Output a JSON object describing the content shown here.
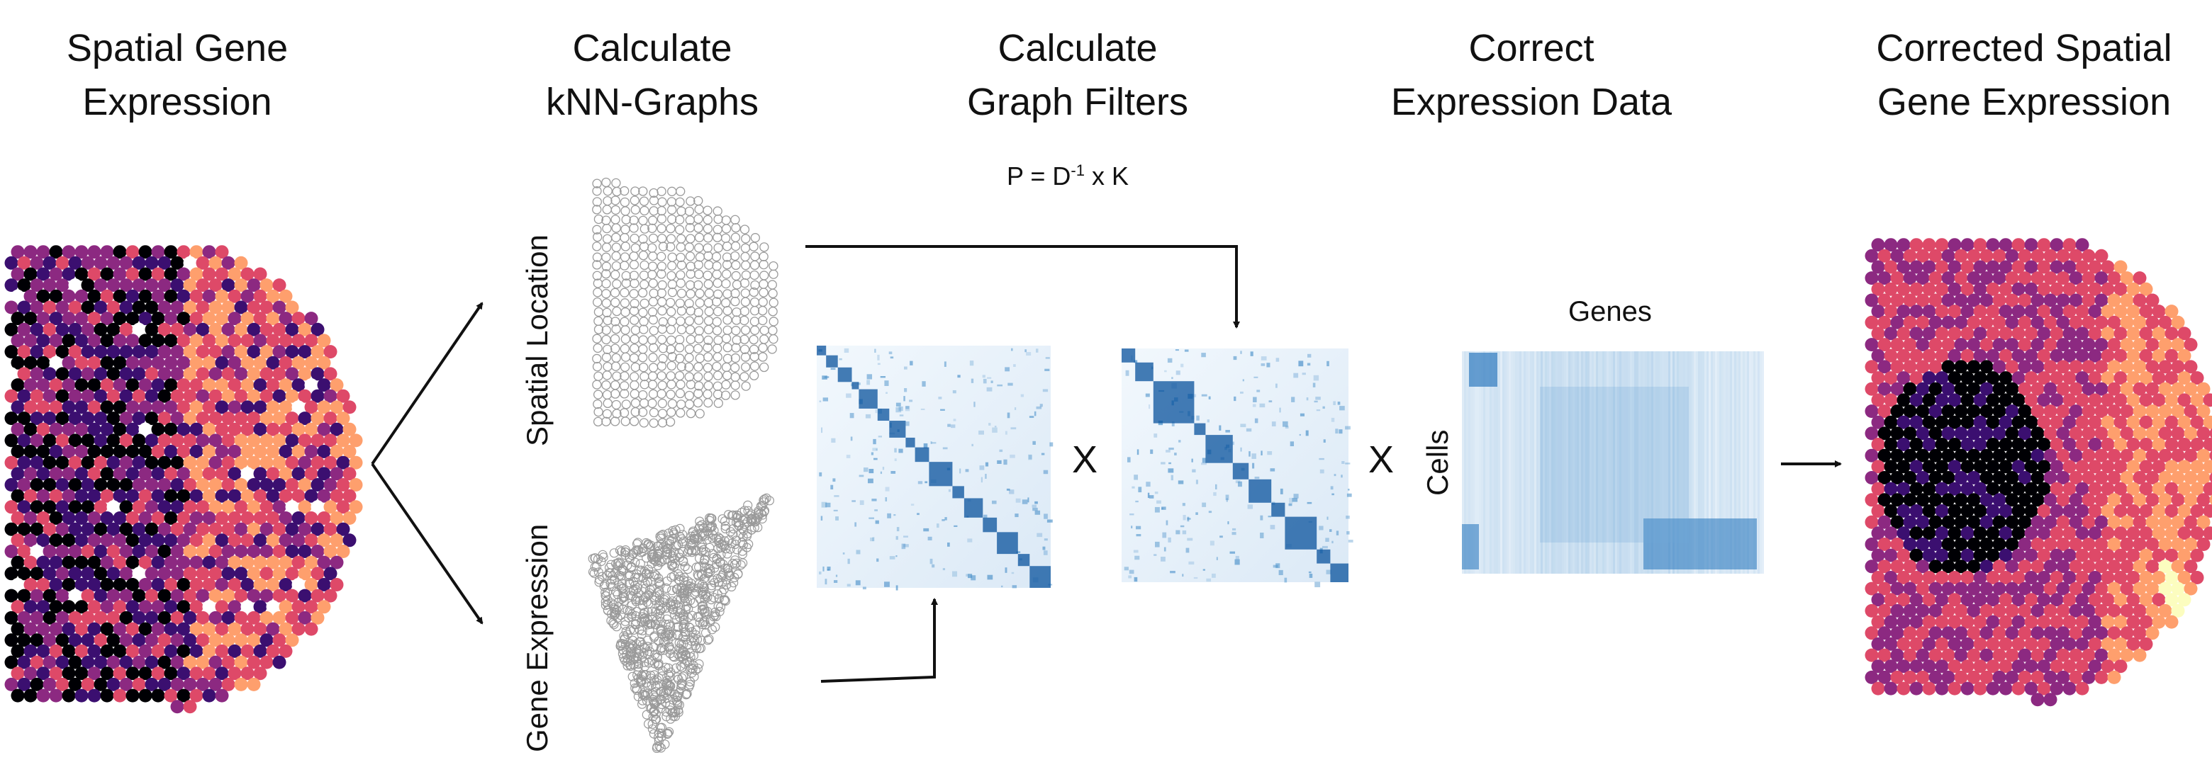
{
  "steps": [
    {
      "line1": "Spatial Gene",
      "line2": "Expression"
    },
    {
      "line1": "Calculate",
      "line2": "kNN-Graphs"
    },
    {
      "line1": "Calculate",
      "line2": "Graph Filters"
    },
    {
      "line1": "Correct",
      "line2": "Expression Data"
    },
    {
      "line1": "Corrected Spatial",
      "line2": "Gene Expression"
    }
  ],
  "formula": {
    "lhs": "P = D",
    "exponent": "-1",
    "rhs": " x K"
  },
  "graph_labels": {
    "spatial": "Spatial Location",
    "expression": "Gene Expression"
  },
  "operators": {
    "times1": "X",
    "times2": "X"
  },
  "matrix_labels": {
    "genes": "Genes",
    "cells": "Cells"
  },
  "colors": {
    "arrow": "#111111",
    "node_outline": "#9a9a9a",
    "heatmap_dark": "#08519c",
    "heatmap_light": "#eaf3fb",
    "inferno": [
      "#000004",
      "#3b0f70",
      "#8c2981",
      "#de4968",
      "#fe9f6d",
      "#fcfdbf"
    ]
  },
  "icons": [
    "branch-arrow",
    "down-arrow",
    "up-arrow",
    "right-arrow"
  ]
}
